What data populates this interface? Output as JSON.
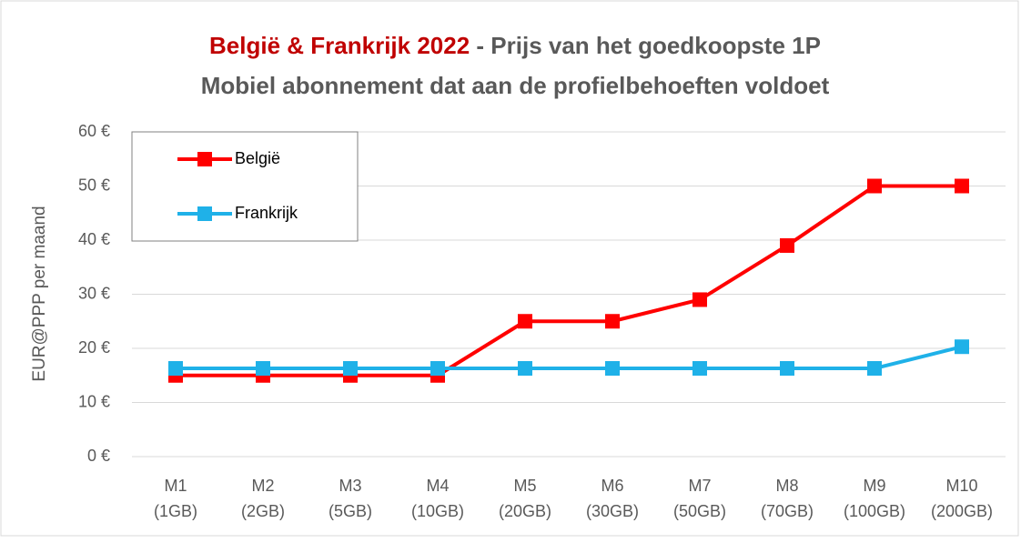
{
  "chart_data": {
    "type": "line",
    "title_highlight": "België & Frankrijk 2022",
    "title": "- Prijs van het goedkoopste 1P",
    "subtitle": "Mobiel abonnement dat aan de profielbehoeften voldoet",
    "y_label": "EUR@PPP per maand",
    "categories": [
      [
        "M1",
        "(1GB)"
      ],
      [
        "M2",
        "(2GB)"
      ],
      [
        "M3",
        "(5GB)"
      ],
      [
        "M4",
        "(10GB)"
      ],
      [
        "M5",
        "(20GB)"
      ],
      [
        "M6",
        "(30GB)"
      ],
      [
        "M7",
        "(50GB)"
      ],
      [
        "M8",
        "(70GB)"
      ],
      [
        "M9",
        "(100GB)"
      ],
      [
        "M10",
        "(200GB)"
      ]
    ],
    "series": [
      {
        "name": "België",
        "color": "#ff0000",
        "values": [
          15,
          15,
          15,
          15,
          25,
          25,
          29,
          39,
          50,
          50
        ]
      },
      {
        "name": "Frankrijk",
        "color": "#1fb1e8",
        "values": [
          16.3,
          16.3,
          16.3,
          16.3,
          16.3,
          16.3,
          16.3,
          16.3,
          16.3,
          20.3
        ]
      }
    ],
    "ylim": [
      0,
      60
    ],
    "yticks": [
      {
        "value": 0,
        "label": "0 €"
      },
      {
        "value": 10,
        "label": "10 €"
      },
      {
        "value": 20,
        "label": "20 €"
      },
      {
        "value": 30,
        "label": "30 €"
      },
      {
        "value": 40,
        "label": "40 €"
      },
      {
        "value": 50,
        "label": "50 €"
      },
      {
        "value": 60,
        "label": "60 €"
      }
    ],
    "grid": true,
    "legend": "upper left"
  }
}
